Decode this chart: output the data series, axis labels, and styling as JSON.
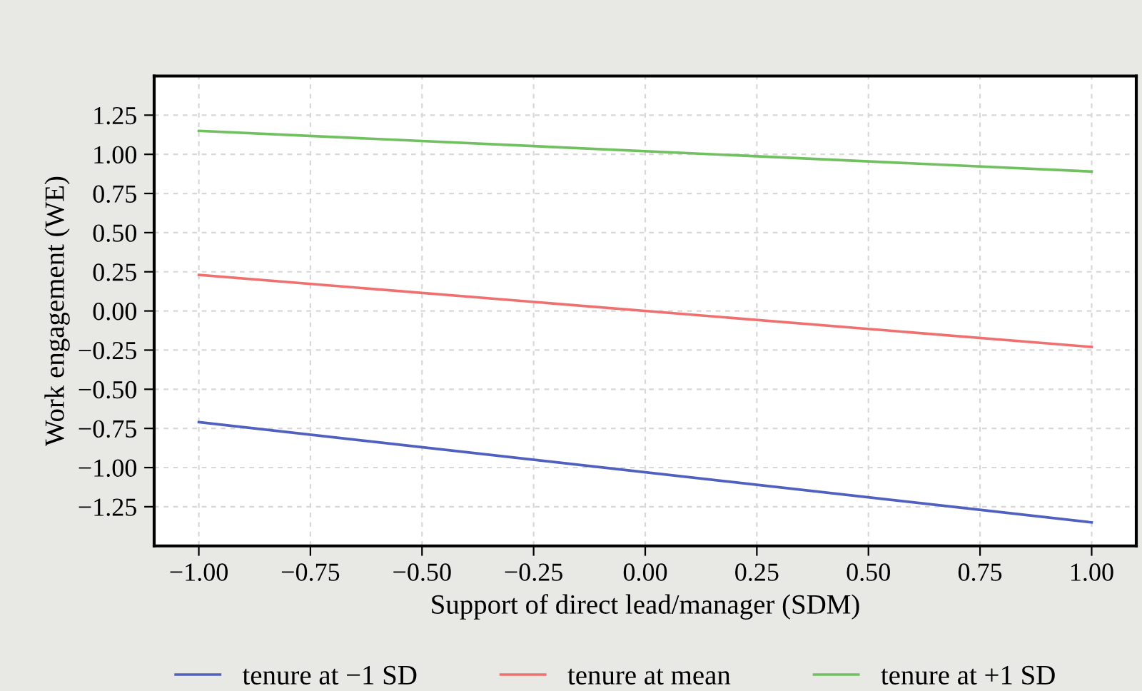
{
  "chart_data": {
    "type": "line",
    "xlabel": "Support of direct lead/manager (SDM)",
    "ylabel": "Work engagement (WE)",
    "x": [
      -1.0,
      1.0
    ],
    "series": [
      {
        "name": "tenure at −1 SD",
        "color": "#5060c0",
        "values": [
          -0.71,
          -1.35
        ]
      },
      {
        "name": "tenure at mean",
        "color": "#f07070",
        "values": [
          0.23,
          -0.23
        ]
      },
      {
        "name": "tenure at +1 SD",
        "color": "#70c060",
        "values": [
          1.15,
          0.89
        ]
      }
    ],
    "xlim": [
      -1.1,
      1.1
    ],
    "ylim": [
      -1.5,
      1.5
    ],
    "xticks": [
      {
        "value": -1.0,
        "label": "−1.00"
      },
      {
        "value": -0.75,
        "label": "−0.75"
      },
      {
        "value": -0.5,
        "label": "−0.50"
      },
      {
        "value": -0.25,
        "label": "−0.25"
      },
      {
        "value": 0,
        "label": "0.00"
      },
      {
        "value": 0.25,
        "label": "0.25"
      },
      {
        "value": 0.5,
        "label": "0.50"
      },
      {
        "value": 0.75,
        "label": "0.75"
      },
      {
        "value": 1.0,
        "label": "1.00"
      }
    ],
    "yticks": [
      {
        "value": -1.25,
        "label": "−1.25"
      },
      {
        "value": -1.0,
        "label": "−1.00"
      },
      {
        "value": -0.75,
        "label": "−0.75"
      },
      {
        "value": -0.5,
        "label": "−0.50"
      },
      {
        "value": -0.25,
        "label": "−0.25"
      },
      {
        "value": 0,
        "label": "0.00"
      },
      {
        "value": 0.25,
        "label": "0.25"
      },
      {
        "value": 0.5,
        "label": "0.50"
      },
      {
        "value": 0.75,
        "label": "0.75"
      },
      {
        "value": 1.0,
        "label": "1.00"
      },
      {
        "value": 1.25,
        "label": "1.25"
      }
    ],
    "grid": true,
    "legend": "bottom",
    "marker": "none",
    "line_style": "solid"
  }
}
